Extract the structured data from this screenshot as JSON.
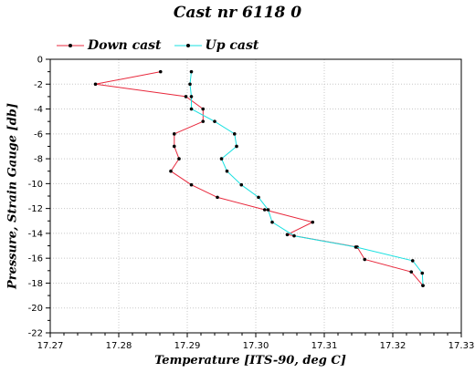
{
  "chart_data": {
    "type": "line",
    "title": "Cast nr 6118 0",
    "xlabel": "Temperature [ITS-90, deg C]",
    "ylabel": "Pressure, Strain Gauge [db]",
    "xlim": [
      17.27,
      17.33
    ],
    "ylim": [
      -22,
      0
    ],
    "x_ticks": [
      "17.27",
      "17.28",
      "17.29",
      "17.30",
      "17.31",
      "17.32",
      "17.33"
    ],
    "y_ticks": [
      "0",
      "-2",
      "-4",
      "-6",
      "-8",
      "-10",
      "-12",
      "-14",
      "-16",
      "-18",
      "-20",
      "-22"
    ],
    "grid": true,
    "legend_position": "top-left",
    "series": [
      {
        "name": "Down cast",
        "color": "#e8283c",
        "points": [
          [
            17.2861,
            -1.0
          ],
          [
            17.2766,
            -2.0
          ],
          [
            17.2898,
            -3.0
          ],
          [
            17.2923,
            -4.0
          ],
          [
            17.2923,
            -5.0
          ],
          [
            17.2881,
            -6.0
          ],
          [
            17.2881,
            -7.0
          ],
          [
            17.2888,
            -8.0
          ],
          [
            17.2876,
            -9.0
          ],
          [
            17.2906,
            -10.1
          ],
          [
            17.2944,
            -11.1
          ],
          [
            17.3013,
            -12.1
          ],
          [
            17.3083,
            -13.1
          ],
          [
            17.3046,
            -14.1
          ],
          [
            17.3148,
            -15.1
          ],
          [
            17.3159,
            -16.1
          ],
          [
            17.3227,
            -17.1
          ],
          [
            17.3244,
            -18.2
          ]
        ]
      },
      {
        "name": "Up cast",
        "color": "#19e0e0",
        "points": [
          [
            17.2906,
            -1.0
          ],
          [
            17.2904,
            -2.0
          ],
          [
            17.2906,
            -3.0
          ],
          [
            17.2906,
            -4.0
          ],
          [
            17.294,
            -5.0
          ],
          [
            17.2969,
            -6.0
          ],
          [
            17.2972,
            -7.0
          ],
          [
            17.295,
            -8.0
          ],
          [
            17.2958,
            -9.0
          ],
          [
            17.2979,
            -10.1
          ],
          [
            17.3004,
            -11.1
          ],
          [
            17.3018,
            -12.1
          ],
          [
            17.3024,
            -13.1
          ],
          [
            17.3056,
            -14.2
          ],
          [
            17.3146,
            -15.1
          ],
          [
            17.3229,
            -16.2
          ],
          [
            17.3243,
            -17.2
          ],
          [
            17.3244,
            -18.2
          ]
        ]
      }
    ]
  }
}
